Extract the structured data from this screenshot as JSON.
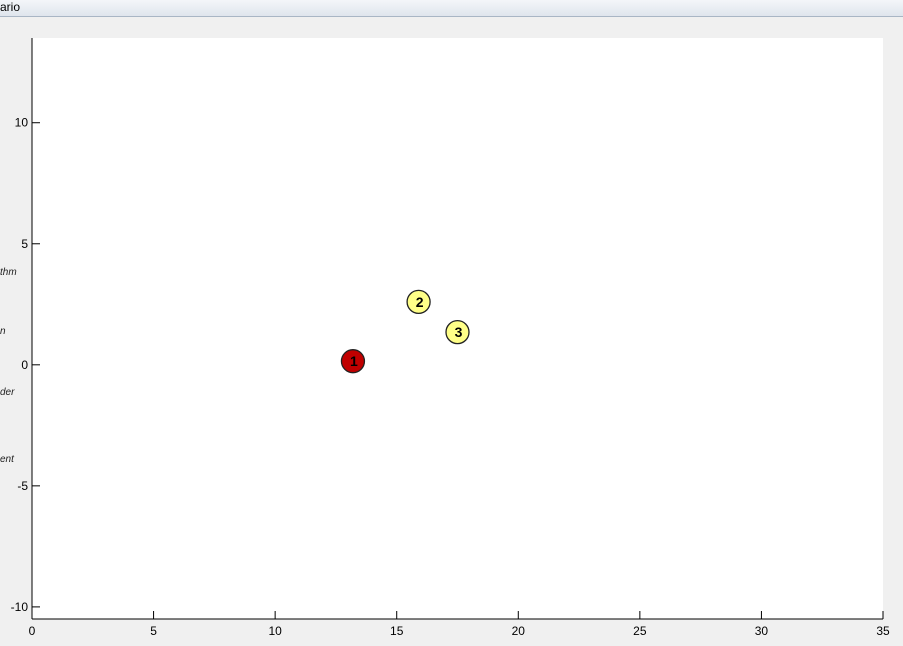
{
  "window": {
    "title_fragment": "ario"
  },
  "side_labels": [
    "thm",
    "n",
    "der",
    "ent"
  ],
  "colors": {
    "axes_bg": "#ffffff",
    "figure_bg": "#f0f0f0",
    "marker_stroke": "#222222"
  },
  "chart_data": {
    "type": "scatter",
    "title": "",
    "xlabel": "",
    "ylabel": "",
    "xlim": [
      0,
      35
    ],
    "ylim": [
      -10.5,
      13.5
    ],
    "xticks": [
      0,
      5,
      10,
      15,
      20,
      25,
      30,
      35
    ],
    "yticks": [
      -10,
      -5,
      0,
      5,
      10
    ],
    "grid": false,
    "points": [
      {
        "label": "1",
        "x": 13.2,
        "y": 0.15,
        "color": "#c00000",
        "text_color": "#000000"
      },
      {
        "label": "2",
        "x": 15.9,
        "y": 2.6,
        "color": "#ffff88",
        "text_color": "#000000"
      },
      {
        "label": "3",
        "x": 17.5,
        "y": 1.35,
        "color": "#ffff88",
        "text_color": "#000000"
      }
    ]
  }
}
